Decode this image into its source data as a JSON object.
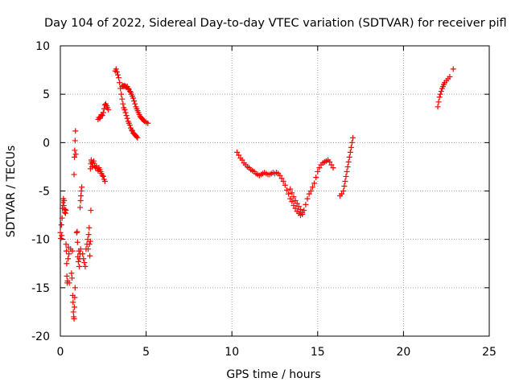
{
  "chart_data": {
    "type": "scatter",
    "title": "Day 104 of 2022, Sidereal Day-to-day VTEC variation (SDTVAR) for receiver pifl",
    "xlabel": "GPS time / hours",
    "ylabel": "SDTVAR / TECUs",
    "xlim": [
      0,
      25
    ],
    "ylim": [
      -20,
      10
    ],
    "xticks": [
      0,
      5,
      10,
      15,
      20,
      25
    ],
    "yticks": [
      -20,
      -15,
      -10,
      -5,
      0,
      5,
      10
    ],
    "grid": true,
    "marker": "+",
    "series": [
      {
        "name": "SDTVAR",
        "color": "#ff0000",
        "points": [
          [
            0.0,
            -9.3
          ],
          [
            0.03,
            -9.9
          ],
          [
            0.06,
            -8.5
          ],
          [
            0.08,
            -9.6
          ],
          [
            0.1,
            -7.8
          ],
          [
            0.12,
            -6.8
          ],
          [
            0.15,
            -6.2
          ],
          [
            0.18,
            -5.8
          ],
          [
            0.2,
            -6.5
          ],
          [
            0.22,
            -6.0
          ],
          [
            0.25,
            -7.2
          ],
          [
            0.28,
            -6.9
          ],
          [
            0.3,
            -7.3
          ],
          [
            0.32,
            -7.0
          ],
          [
            0.33,
            -10.5
          ],
          [
            0.35,
            -11.2
          ],
          [
            0.37,
            -12.5
          ],
          [
            0.38,
            -13.8
          ],
          [
            0.4,
            -14.5
          ],
          [
            0.42,
            -14.3
          ],
          [
            0.45,
            -12.0
          ],
          [
            0.47,
            -10.8
          ],
          [
            0.5,
            -11.5
          ],
          [
            0.52,
            -14.5
          ],
          [
            0.6,
            -11.0
          ],
          [
            0.65,
            -13.5
          ],
          [
            0.68,
            -14.0
          ],
          [
            0.7,
            -11.2
          ],
          [
            0.72,
            -15.8
          ],
          [
            0.74,
            -16.5
          ],
          [
            0.76,
            -17.5
          ],
          [
            0.78,
            -18.0
          ],
          [
            0.8,
            -18.2
          ],
          [
            0.82,
            -17.0
          ],
          [
            0.84,
            -16.0
          ],
          [
            0.86,
            -15.0
          ],
          [
            0.8,
            -3.3
          ],
          [
            0.82,
            -1.5
          ],
          [
            0.84,
            -0.8
          ],
          [
            0.86,
            0.2
          ],
          [
            0.88,
            1.2
          ],
          [
            0.9,
            -1.2
          ],
          [
            0.95,
            -9.3
          ],
          [
            0.98,
            -9.2
          ],
          [
            1.0,
            -10.3
          ],
          [
            1.02,
            -11.8
          ],
          [
            1.05,
            -12.3
          ],
          [
            1.08,
            -11.2
          ],
          [
            1.1,
            -12.8
          ],
          [
            1.12,
            -12.0
          ],
          [
            1.15,
            -11.5
          ],
          [
            1.18,
            -11.0
          ],
          [
            1.15,
            -6.7
          ],
          [
            1.18,
            -6.0
          ],
          [
            1.2,
            -5.5
          ],
          [
            1.22,
            -5.0
          ],
          [
            1.25,
            -4.6
          ],
          [
            1.3,
            -11.5
          ],
          [
            1.35,
            -12.0
          ],
          [
            1.4,
            -12.4
          ],
          [
            1.45,
            -12.8
          ],
          [
            1.5,
            -11.0
          ],
          [
            1.55,
            -10.5
          ],
          [
            1.6,
            -10.0
          ],
          [
            1.62,
            -11.0
          ],
          [
            1.65,
            -9.5
          ],
          [
            1.68,
            -8.8
          ],
          [
            1.7,
            -10.5
          ],
          [
            1.72,
            -11.7
          ],
          [
            1.75,
            -10.2
          ],
          [
            1.78,
            -7.0
          ],
          [
            1.75,
            -2.7
          ],
          [
            1.78,
            -2.2
          ],
          [
            1.8,
            -1.8
          ],
          [
            1.82,
            -2.0
          ],
          [
            1.85,
            -2.5
          ],
          [
            1.9,
            -2.1
          ],
          [
            1.95,
            -1.9
          ],
          [
            2.0,
            -2.4
          ],
          [
            2.05,
            -2.6
          ],
          [
            2.1,
            -2.4
          ],
          [
            2.15,
            -2.7
          ],
          [
            2.2,
            -2.9
          ],
          [
            2.25,
            -2.6
          ],
          [
            2.3,
            -2.8
          ],
          [
            2.35,
            -3.0
          ],
          [
            2.4,
            -3.2
          ],
          [
            2.45,
            -3.4
          ],
          [
            2.5,
            -3.5
          ],
          [
            2.55,
            -3.8
          ],
          [
            2.6,
            -4.0
          ],
          [
            2.2,
            2.4
          ],
          [
            2.25,
            2.6
          ],
          [
            2.3,
            2.5
          ],
          [
            2.35,
            2.7
          ],
          [
            2.4,
            2.9
          ],
          [
            2.45,
            2.8
          ],
          [
            2.5,
            3.1
          ],
          [
            2.55,
            3.5
          ],
          [
            2.6,
            3.9
          ],
          [
            2.65,
            4.0
          ],
          [
            2.7,
            3.8
          ],
          [
            2.75,
            3.6
          ],
          [
            2.8,
            3.4
          ],
          [
            3.2,
            7.4
          ],
          [
            3.25,
            7.6
          ],
          [
            3.3,
            7.3
          ],
          [
            3.35,
            7.0
          ],
          [
            3.4,
            6.7
          ],
          [
            3.45,
            6.2
          ],
          [
            3.5,
            5.6
          ],
          [
            3.55,
            5.0
          ],
          [
            3.6,
            4.5
          ],
          [
            3.65,
            4.0
          ],
          [
            3.7,
            3.6
          ],
          [
            3.75,
            3.4
          ],
          [
            3.8,
            3.1
          ],
          [
            3.85,
            2.8
          ],
          [
            3.9,
            2.5
          ],
          [
            3.95,
            2.2
          ],
          [
            4.0,
            2.0
          ],
          [
            4.05,
            1.8
          ],
          [
            4.1,
            1.5
          ],
          [
            4.15,
            1.3
          ],
          [
            4.2,
            1.2
          ],
          [
            4.25,
            1.0
          ],
          [
            4.3,
            0.9
          ],
          [
            4.35,
            0.8
          ],
          [
            4.4,
            0.7
          ],
          [
            4.45,
            0.6
          ],
          [
            4.5,
            0.5
          ],
          [
            3.6,
            5.8
          ],
          [
            3.65,
            5.9
          ],
          [
            3.7,
            5.8
          ],
          [
            3.75,
            5.9
          ],
          [
            3.8,
            5.8
          ],
          [
            3.85,
            5.7
          ],
          [
            3.9,
            5.8
          ],
          [
            3.95,
            5.6
          ],
          [
            4.0,
            5.5
          ],
          [
            4.05,
            5.3
          ],
          [
            4.1,
            5.2
          ],
          [
            4.15,
            5.0
          ],
          [
            4.2,
            4.8
          ],
          [
            4.25,
            4.6
          ],
          [
            4.3,
            4.3
          ],
          [
            4.35,
            4.0
          ],
          [
            4.4,
            3.7
          ],
          [
            4.45,
            3.5
          ],
          [
            4.5,
            3.3
          ],
          [
            4.55,
            3.1
          ],
          [
            4.6,
            2.9
          ],
          [
            4.65,
            2.7
          ],
          [
            4.7,
            2.6
          ],
          [
            4.75,
            2.5
          ],
          [
            4.8,
            2.4
          ],
          [
            4.85,
            2.3
          ],
          [
            4.9,
            2.2
          ],
          [
            5.0,
            2.1
          ],
          [
            5.1,
            2.0
          ],
          [
            10.3,
            -1.0
          ],
          [
            10.4,
            -1.3
          ],
          [
            10.5,
            -1.6
          ],
          [
            10.6,
            -1.8
          ],
          [
            10.7,
            -2.1
          ],
          [
            10.8,
            -2.3
          ],
          [
            10.9,
            -2.5
          ],
          [
            11.0,
            -2.6
          ],
          [
            11.1,
            -2.8
          ],
          [
            11.2,
            -2.9
          ],
          [
            11.3,
            -3.0
          ],
          [
            11.4,
            -3.2
          ],
          [
            11.5,
            -3.3
          ],
          [
            11.6,
            -3.4
          ],
          [
            11.7,
            -3.3
          ],
          [
            11.8,
            -3.2
          ],
          [
            11.9,
            -3.1
          ],
          [
            12.0,
            -3.2
          ],
          [
            12.1,
            -3.3
          ],
          [
            12.2,
            -3.3
          ],
          [
            12.3,
            -3.2
          ],
          [
            12.4,
            -3.1
          ],
          [
            12.5,
            -3.2
          ],
          [
            12.6,
            -3.1
          ],
          [
            12.7,
            -3.2
          ],
          [
            12.8,
            -3.4
          ],
          [
            12.9,
            -3.7
          ],
          [
            13.0,
            -4.0
          ],
          [
            13.1,
            -4.4
          ],
          [
            13.2,
            -4.9
          ],
          [
            13.3,
            -5.3
          ],
          [
            13.4,
            -5.8
          ],
          [
            13.5,
            -6.1
          ],
          [
            13.6,
            -6.5
          ],
          [
            13.7,
            -6.8
          ],
          [
            13.8,
            -7.1
          ],
          [
            13.9,
            -7.3
          ],
          [
            14.0,
            -7.5
          ],
          [
            14.1,
            -7.4
          ],
          [
            14.2,
            -7.0
          ],
          [
            14.3,
            -6.4
          ],
          [
            14.4,
            -5.8
          ],
          [
            14.5,
            -5.3
          ],
          [
            14.6,
            -5.0
          ],
          [
            14.7,
            -4.6
          ],
          [
            14.8,
            -4.2
          ],
          [
            14.9,
            -3.6
          ],
          [
            15.0,
            -3.0
          ],
          [
            15.1,
            -2.6
          ],
          [
            15.2,
            -2.3
          ],
          [
            15.3,
            -2.1
          ],
          [
            15.4,
            -2.0
          ],
          [
            15.5,
            -1.9
          ],
          [
            15.6,
            -1.8
          ],
          [
            15.7,
            -2.0
          ],
          [
            15.8,
            -2.3
          ],
          [
            15.9,
            -2.6
          ],
          [
            13.4,
            -4.8
          ],
          [
            13.5,
            -5.2
          ],
          [
            13.6,
            -5.6
          ],
          [
            13.7,
            -6.0
          ],
          [
            13.8,
            -6.3
          ],
          [
            13.9,
            -6.6
          ],
          [
            14.0,
            -6.9
          ],
          [
            14.1,
            -7.2
          ],
          [
            16.3,
            -5.5
          ],
          [
            16.4,
            -5.3
          ],
          [
            16.5,
            -5.0
          ],
          [
            16.55,
            -4.5
          ],
          [
            16.6,
            -4.0
          ],
          [
            16.65,
            -3.5
          ],
          [
            16.7,
            -3.0
          ],
          [
            16.75,
            -2.5
          ],
          [
            16.8,
            -2.0
          ],
          [
            16.85,
            -1.5
          ],
          [
            16.9,
            -1.0
          ],
          [
            16.95,
            -0.5
          ],
          [
            17.0,
            0.0
          ],
          [
            17.05,
            0.5
          ],
          [
            22.0,
            3.7
          ],
          [
            22.05,
            4.2
          ],
          [
            22.1,
            4.7
          ],
          [
            22.15,
            5.0
          ],
          [
            22.2,
            5.3
          ],
          [
            22.25,
            5.6
          ],
          [
            22.3,
            5.8
          ],
          [
            22.35,
            6.0
          ],
          [
            22.4,
            6.2
          ],
          [
            22.5,
            6.4
          ],
          [
            22.6,
            6.6
          ],
          [
            22.7,
            6.8
          ],
          [
            22.9,
            7.6
          ]
        ]
      }
    ]
  }
}
